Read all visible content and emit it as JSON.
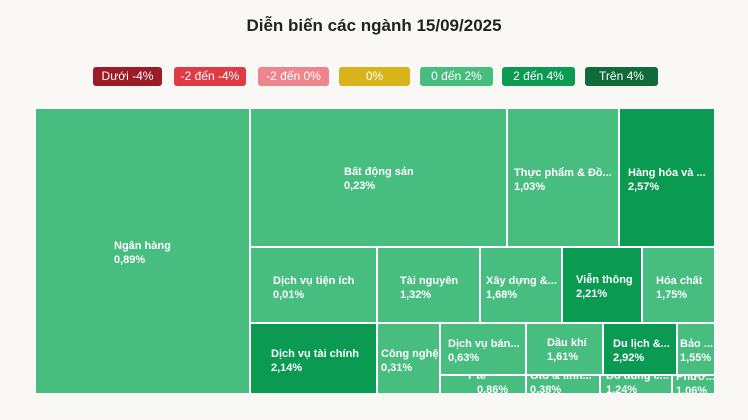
{
  "title": "Diễn biến các ngành 15/09/2025",
  "legend": [
    {
      "label": "Dưới -4%",
      "color": "#9b1c26"
    },
    {
      "label": "-2 đến -4%",
      "color": "#e03b45"
    },
    {
      "label": "-2 đến 0%",
      "color": "#ef858c"
    },
    {
      "label": "0%",
      "color": "#d8b31a"
    },
    {
      "label": "0 đến 2%",
      "color": "#47bd7f"
    },
    {
      "label": "2 đến 4%",
      "color": "#0b9a52"
    },
    {
      "label": "Trên 4%",
      "color": "#116a3a"
    }
  ],
  "chart_data": {
    "type": "treemap",
    "title": "Diễn biến các ngành 15/09/2025",
    "unit": "%",
    "sectors": [
      {
        "name": "Ngân hàng",
        "value": 0.89
      },
      {
        "name": "Bất động sản",
        "value": 0.23
      },
      {
        "name": "Thực phẩm & Đồ...",
        "value": 1.03
      },
      {
        "name": "Hàng hóa và ...",
        "value": 2.57
      },
      {
        "name": "Dịch vụ tiện ích",
        "value": 0.01
      },
      {
        "name": "Tài nguyên",
        "value": 1.32
      },
      {
        "name": "Xây dựng &...",
        "value": 1.68
      },
      {
        "name": "Viễn thông",
        "value": 2.21
      },
      {
        "name": "Hóa chất",
        "value": 1.75
      },
      {
        "name": "Dịch vụ tài chính",
        "value": 2.14
      },
      {
        "name": "Công nghệ",
        "value": 0.31
      },
      {
        "name": "Dịch vụ bán...",
        "value": 0.63
      },
      {
        "name": "Dầu khí",
        "value": 1.61
      },
      {
        "name": "Du lịch &...",
        "value": 2.92
      },
      {
        "name": "Bảo ...",
        "value": 1.55
      },
      {
        "name": "Y tế",
        "value": 0.86
      },
      {
        "name": "Ôtô & linh...",
        "value": 0.38
      },
      {
        "name": "Đồ dùng c...",
        "value": 1.24
      },
      {
        "name": "Phươ...",
        "value": 1.06
      }
    ]
  }
}
